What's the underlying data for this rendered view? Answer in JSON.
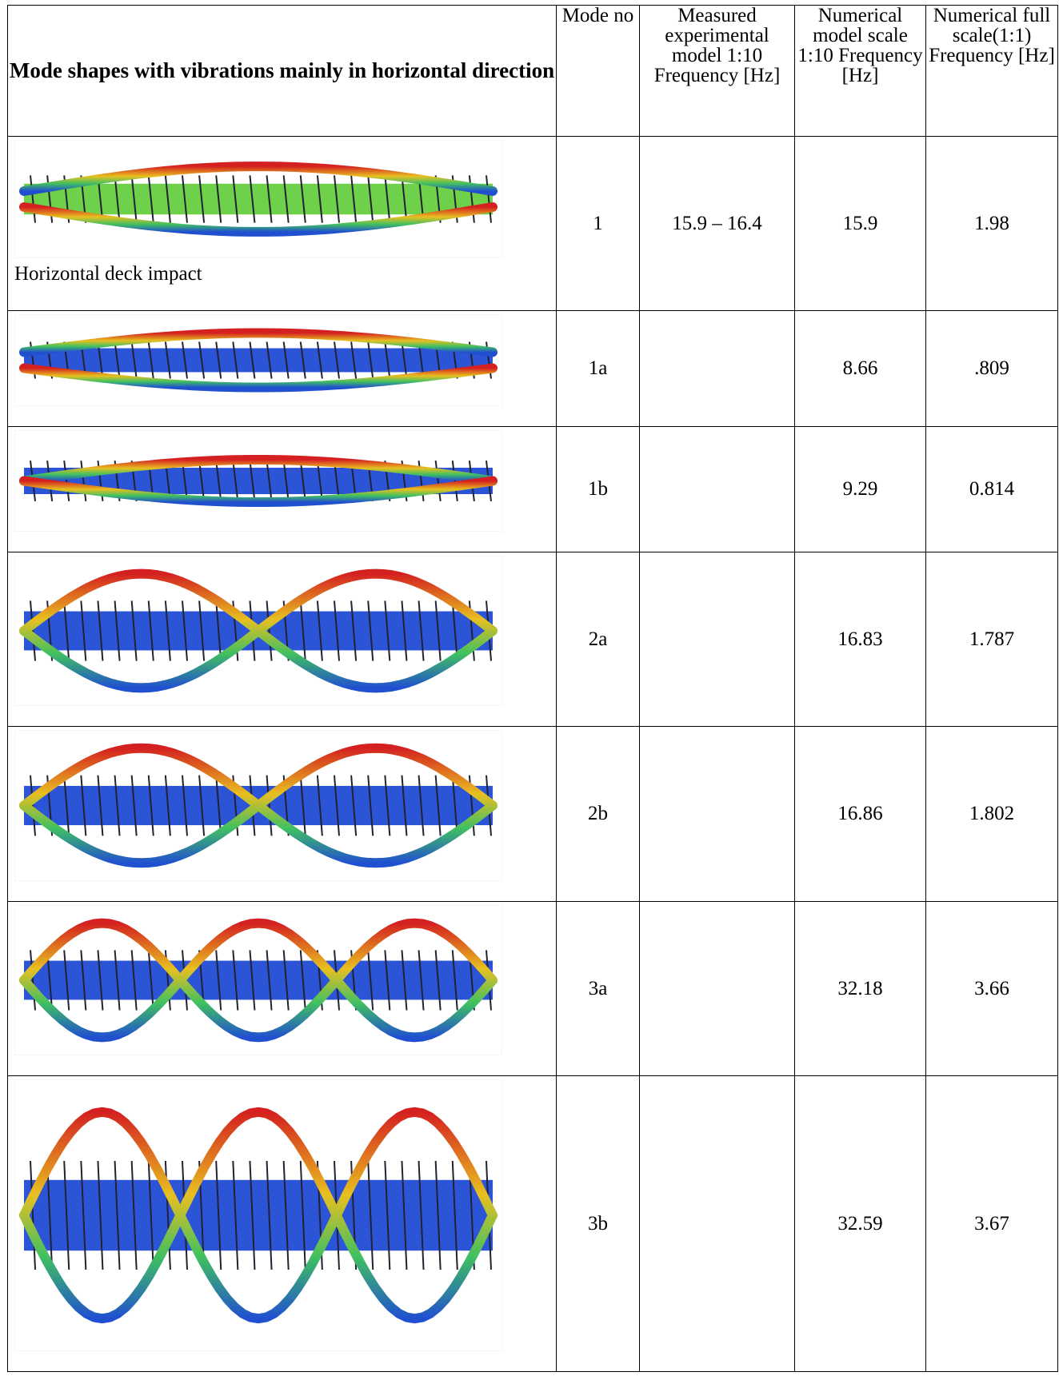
{
  "table": {
    "header": [
      "Mode shapes with vibrations mainly in horizontal direction",
      "Mode no",
      "Measured experimental model 1:10 Frequency [Hz]",
      "Numerical model scale 1:10 Frequency [Hz]",
      "Numerical full scale(1:1) Frequency [Hz]"
    ],
    "rows": [
      {
        "caption": "Horizontal deck impact",
        "mode": "1",
        "measured": "15.9 – 16.4",
        "model": "15.9",
        "full": "1.98"
      },
      {
        "mode": "1a",
        "model": "8.66",
        "full": ".809"
      },
      {
        "mode": "1b",
        "model": "9.29",
        "full": "0.814"
      },
      {
        "mode": "2a",
        "model": "16.83",
        "full": "1.787"
      },
      {
        "mode": "2b",
        "model": "16.86",
        "full": "1.802"
      },
      {
        "mode": "3a",
        "model": "32.18",
        "full": "3.66"
      },
      {
        "mode": "3b",
        "model": "32.59",
        "full": "3.67"
      }
    ]
  }
}
